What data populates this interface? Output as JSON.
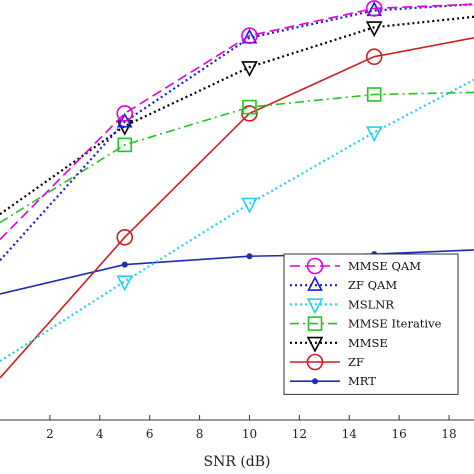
{
  "chart_data": {
    "type": "line",
    "xlabel": "SNR (dB)",
    "ylabel": "",
    "title": "",
    "xlim": [
      0,
      19
    ],
    "ylim": [
      0,
      1
    ],
    "xticks": [
      2,
      4,
      6,
      8,
      10,
      12,
      14,
      16,
      18
    ],
    "grid": false,
    "legend_position": "bottom-right",
    "series": [
      {
        "name": "MMSE QAM",
        "color": "#e000e0",
        "dash": "dashed",
        "marker": "circle-open",
        "x": [
          0,
          5,
          10,
          15,
          19
        ],
        "y": [
          0.43,
          0.73,
          0.915,
          0.98,
          0.99
        ]
      },
      {
        "name": "ZF QAM",
        "color": "#1c1cd0",
        "dash": "dotted",
        "marker": "triangle-up-open",
        "x": [
          0,
          5,
          10,
          15,
          19
        ],
        "y": [
          0.38,
          0.71,
          0.91,
          0.975,
          0.99
        ]
      },
      {
        "name": "MSLNR",
        "color": "#22d3ee",
        "dash": "dotted",
        "marker": "triangle-down-open",
        "x": [
          0,
          5,
          10,
          15,
          19
        ],
        "y": [
          0.14,
          0.33,
          0.515,
          0.685,
          0.81
        ]
      },
      {
        "name": "MMSE Iterative",
        "color": "#22c522",
        "dash": "dashdot",
        "marker": "square-open",
        "x": [
          0,
          5,
          10,
          15,
          19
        ],
        "y": [
          0.47,
          0.655,
          0.745,
          0.775,
          0.78
        ]
      },
      {
        "name": "MMSE",
        "color": "#000000",
        "dash": "dotted",
        "marker": "triangle-down-open",
        "x": [
          0,
          5,
          10,
          15,
          19
        ],
        "y": [
          0.49,
          0.7,
          0.84,
          0.935,
          0.96
        ]
      },
      {
        "name": "ZF",
        "color": "#cc2020",
        "dash": "solid",
        "marker": "circle-open",
        "x": [
          0,
          5,
          10,
          15,
          19
        ],
        "y": [
          0.1,
          0.435,
          0.73,
          0.865,
          0.91
        ]
      },
      {
        "name": "MRT",
        "color": "#1c2db5",
        "dash": "solid",
        "marker": "dot-filled",
        "x": [
          0,
          5,
          10,
          15,
          19
        ],
        "y": [
          0.3,
          0.37,
          0.39,
          0.395,
          0.405
        ]
      }
    ]
  }
}
